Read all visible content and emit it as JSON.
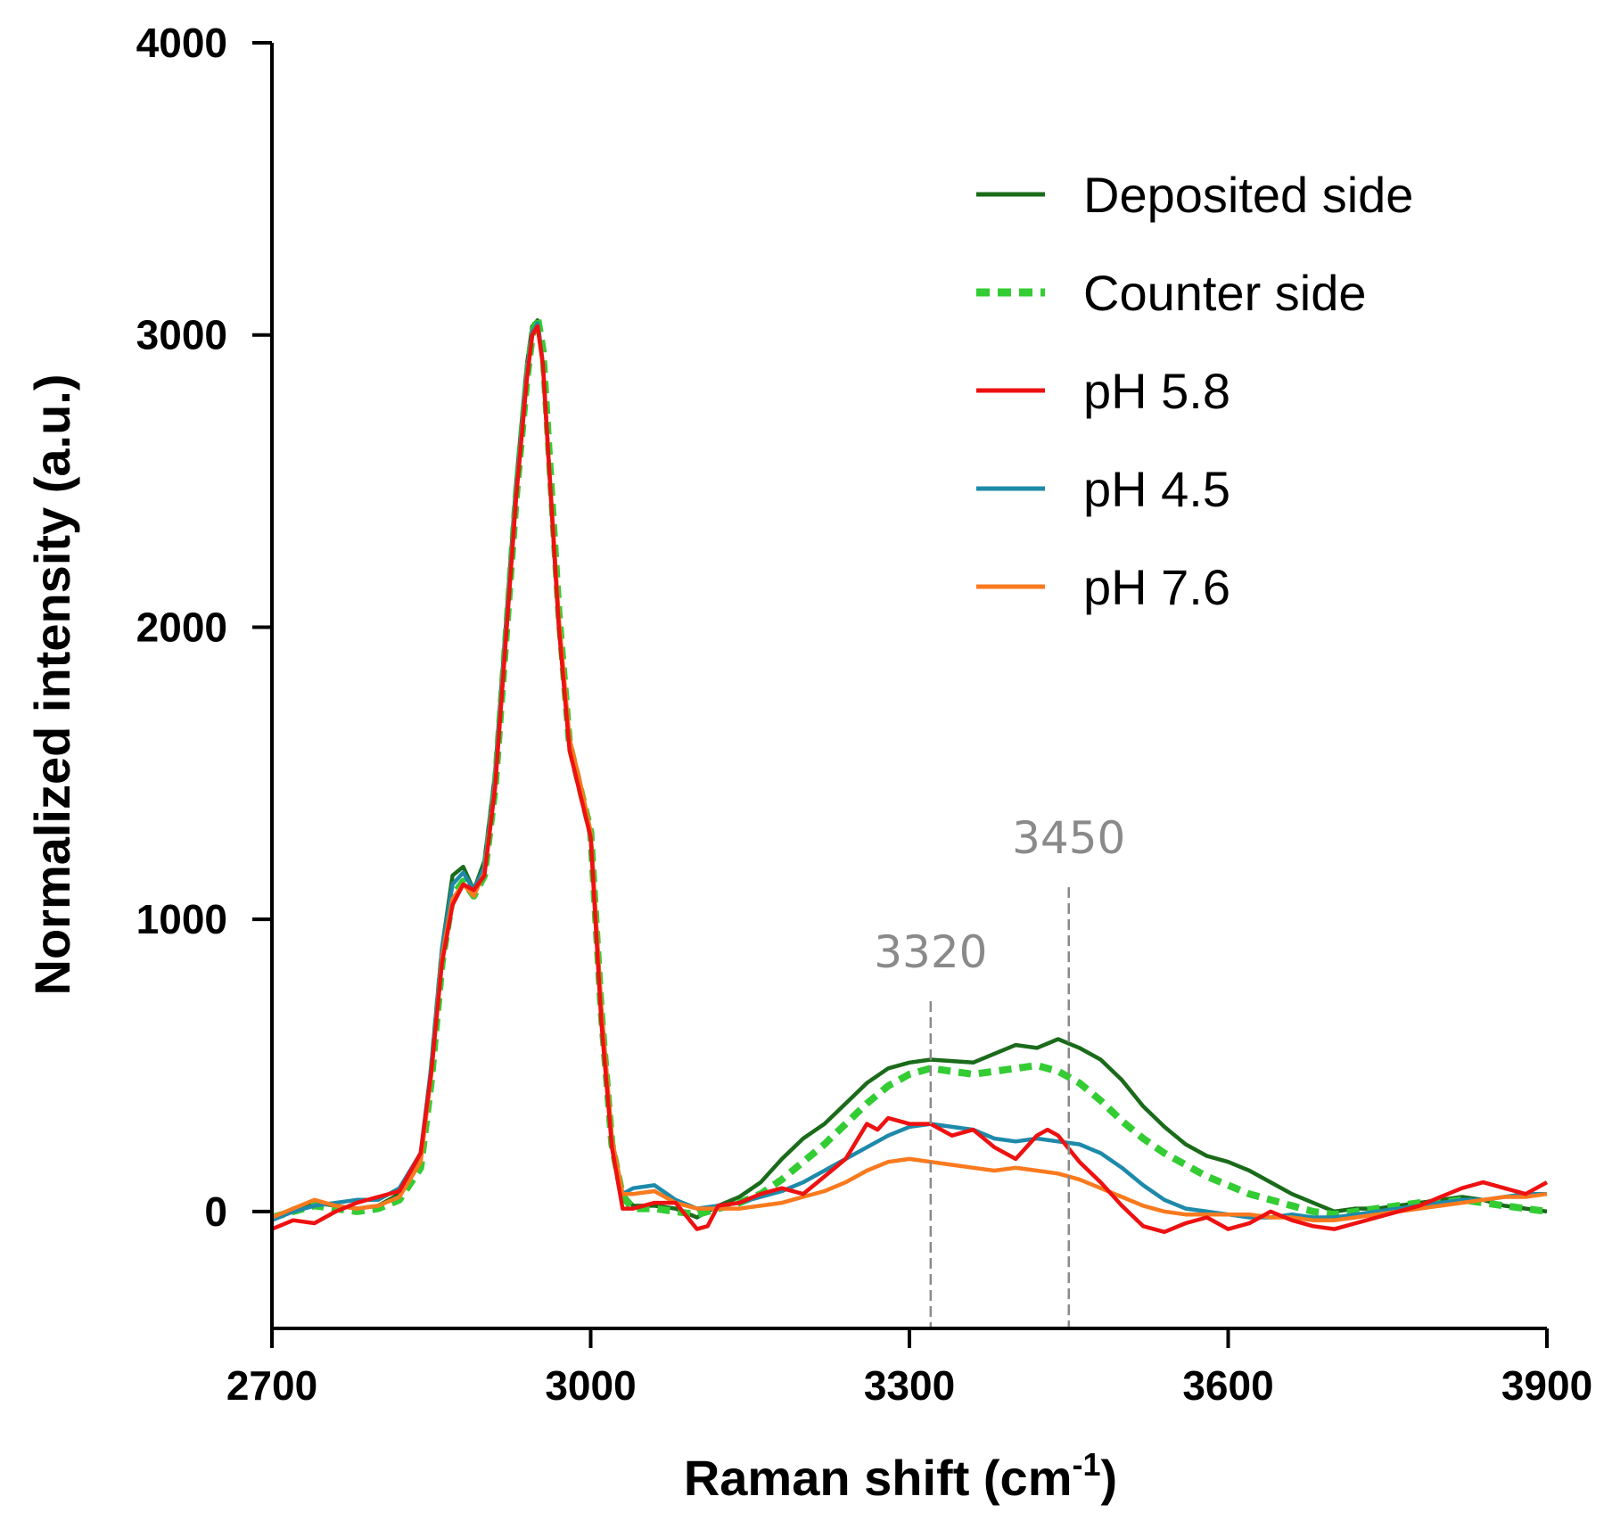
{
  "chart_data": {
    "type": "line",
    "title": "",
    "xlabel": "Raman shift (cm",
    "xlabel_sup": "-1",
    "xlabel_close": ")",
    "ylabel": "Normalized intensity (a.u.)",
    "xlim": [
      2700,
      3900
    ],
    "ylim": [
      -400,
      4000
    ],
    "xticks": [
      2700,
      3000,
      3300,
      3600,
      3900
    ],
    "yticks": [
      0,
      1000,
      2000,
      3000,
      4000
    ],
    "grid": false,
    "legend_position": "top-right",
    "annotations": [
      {
        "x": 3320,
        "label": "3320",
        "line_top": 720
      },
      {
        "x": 3450,
        "label": "3450",
        "line_top": 1110
      }
    ],
    "series": [
      {
        "name": "Deposited side",
        "color": "#1a6b1a",
        "dash": "solid",
        "x": [
          2700,
          2720,
          2740,
          2760,
          2780,
          2800,
          2820,
          2840,
          2850,
          2860,
          2870,
          2880,
          2890,
          2900,
          2910,
          2920,
          2930,
          2940,
          2945,
          2950,
          2955,
          2960,
          2970,
          2980,
          2990,
          3000,
          3010,
          3020,
          3030,
          3040,
          3060,
          3080,
          3100,
          3120,
          3140,
          3160,
          3180,
          3200,
          3220,
          3240,
          3260,
          3280,
          3300,
          3320,
          3340,
          3360,
          3380,
          3400,
          3420,
          3440,
          3460,
          3480,
          3500,
          3520,
          3540,
          3560,
          3580,
          3600,
          3620,
          3640,
          3660,
          3680,
          3700,
          3720,
          3740,
          3760,
          3780,
          3800,
          3820,
          3840,
          3860,
          3880,
          3900
        ],
        "values": [
          -30,
          10,
          30,
          20,
          10,
          20,
          60,
          180,
          500,
          900,
          1150,
          1180,
          1100,
          1200,
          1500,
          2000,
          2500,
          2900,
          3030,
          3050,
          2900,
          2600,
          2000,
          1600,
          1450,
          1300,
          700,
          250,
          60,
          20,
          20,
          10,
          -20,
          20,
          50,
          100,
          180,
          250,
          300,
          370,
          440,
          490,
          510,
          520,
          515,
          510,
          540,
          570,
          560,
          590,
          560,
          520,
          450,
          360,
          290,
          230,
          190,
          170,
          140,
          100,
          60,
          30,
          0,
          10,
          10,
          20,
          30,
          40,
          50,
          40,
          20,
          10,
          0
        ]
      },
      {
        "name": "Counter side",
        "color": "#33cc33",
        "dash": "dashed",
        "x": [
          2700,
          2720,
          2740,
          2760,
          2780,
          2800,
          2820,
          2840,
          2850,
          2860,
          2870,
          2880,
          2890,
          2900,
          2910,
          2920,
          2930,
          2940,
          2945,
          2950,
          2955,
          2960,
          2970,
          2980,
          2990,
          3000,
          3010,
          3020,
          3030,
          3040,
          3060,
          3080,
          3100,
          3120,
          3140,
          3160,
          3180,
          3200,
          3220,
          3240,
          3260,
          3280,
          3300,
          3320,
          3340,
          3360,
          3380,
          3400,
          3420,
          3440,
          3460,
          3480,
          3500,
          3520,
          3540,
          3560,
          3580,
          3600,
          3620,
          3640,
          3660,
          3680,
          3700,
          3720,
          3740,
          3760,
          3780,
          3800,
          3820,
          3840,
          3860,
          3880,
          3900
        ],
        "values": [
          -20,
          0,
          20,
          10,
          0,
          10,
          40,
          150,
          450,
          850,
          1080,
          1130,
          1080,
          1150,
          1450,
          1950,
          2450,
          2850,
          3000,
          3060,
          2950,
          2650,
          2050,
          1600,
          1450,
          1300,
          680,
          230,
          50,
          10,
          10,
          0,
          -10,
          10,
          30,
          60,
          110,
          170,
          230,
          300,
          370,
          430,
          470,
          490,
          480,
          470,
          480,
          490,
          500,
          480,
          440,
          380,
          310,
          250,
          200,
          160,
          120,
          90,
          60,
          40,
          20,
          0,
          -10,
          0,
          10,
          20,
          30,
          30,
          40,
          30,
          20,
          10,
          0
        ]
      },
      {
        "name": "pH 5.8",
        "color": "#ee1111",
        "dash": "solid",
        "x": [
          2700,
          2720,
          2740,
          2760,
          2780,
          2800,
          2820,
          2840,
          2850,
          2860,
          2870,
          2880,
          2890,
          2900,
          2910,
          2920,
          2930,
          2940,
          2945,
          2950,
          2955,
          2960,
          2970,
          2980,
          2990,
          3000,
          3010,
          3020,
          3030,
          3040,
          3060,
          3080,
          3100,
          3110,
          3120,
          3140,
          3160,
          3180,
          3200,
          3220,
          3240,
          3260,
          3270,
          3280,
          3290,
          3300,
          3320,
          3340,
          3360,
          3380,
          3400,
          3420,
          3430,
          3440,
          3460,
          3480,
          3500,
          3520,
          3540,
          3560,
          3580,
          3600,
          3620,
          3640,
          3660,
          3680,
          3700,
          3720,
          3740,
          3760,
          3780,
          3800,
          3820,
          3840,
          3860,
          3880,
          3900
        ],
        "values": [
          -60,
          -30,
          -40,
          0,
          30,
          50,
          70,
          200,
          480,
          850,
          1050,
          1120,
          1100,
          1150,
          1450,
          1950,
          2450,
          2850,
          3000,
          3030,
          2900,
          2600,
          2000,
          1580,
          1430,
          1280,
          650,
          220,
          10,
          10,
          30,
          30,
          -60,
          -50,
          20,
          30,
          60,
          80,
          60,
          120,
          180,
          300,
          280,
          320,
          310,
          300,
          300,
          260,
          280,
          220,
          180,
          260,
          280,
          260,
          170,
          100,
          20,
          -50,
          -70,
          -40,
          -20,
          -60,
          -40,
          0,
          -30,
          -50,
          -60,
          -40,
          -20,
          0,
          20,
          50,
          80,
          100,
          80,
          60,
          100
        ]
      },
      {
        "name": "pH 4.5",
        "color": "#1e8aaa",
        "dash": "solid",
        "x": [
          2700,
          2720,
          2740,
          2760,
          2780,
          2800,
          2820,
          2840,
          2850,
          2860,
          2870,
          2880,
          2890,
          2900,
          2910,
          2920,
          2930,
          2940,
          2945,
          2950,
          2955,
          2960,
          2970,
          2980,
          2990,
          3000,
          3010,
          3020,
          3030,
          3040,
          3060,
          3080,
          3100,
          3120,
          3140,
          3160,
          3180,
          3200,
          3220,
          3240,
          3260,
          3280,
          3300,
          3320,
          3340,
          3360,
          3380,
          3400,
          3420,
          3440,
          3460,
          3480,
          3500,
          3520,
          3540,
          3560,
          3580,
          3600,
          3620,
          3640,
          3660,
          3680,
          3700,
          3720,
          3740,
          3760,
          3780,
          3800,
          3820,
          3840,
          3860,
          3880,
          3900
        ],
        "values": [
          -30,
          0,
          20,
          30,
          40,
          40,
          80,
          200,
          500,
          900,
          1120,
          1160,
          1100,
          1180,
          1480,
          1980,
          2480,
          2880,
          3010,
          3040,
          2900,
          2600,
          2020,
          1590,
          1440,
          1290,
          670,
          240,
          60,
          80,
          90,
          40,
          10,
          20,
          30,
          50,
          70,
          100,
          140,
          180,
          220,
          260,
          290,
          300,
          290,
          280,
          250,
          240,
          250,
          240,
          230,
          200,
          150,
          90,
          40,
          10,
          0,
          -10,
          -20,
          -20,
          -10,
          -20,
          -20,
          -10,
          0,
          10,
          20,
          30,
          40,
          40,
          50,
          60,
          60
        ]
      },
      {
        "name": "pH 7.6",
        "color": "#f97a1e",
        "dash": "solid",
        "x": [
          2700,
          2720,
          2740,
          2760,
          2780,
          2800,
          2820,
          2840,
          2850,
          2860,
          2870,
          2880,
          2890,
          2900,
          2910,
          2920,
          2930,
          2940,
          2945,
          2950,
          2955,
          2960,
          2970,
          2980,
          2990,
          3000,
          3010,
          3020,
          3030,
          3040,
          3060,
          3080,
          3100,
          3120,
          3140,
          3160,
          3180,
          3200,
          3220,
          3240,
          3260,
          3280,
          3300,
          3320,
          3340,
          3360,
          3380,
          3400,
          3420,
          3440,
          3460,
          3480,
          3500,
          3520,
          3540,
          3560,
          3580,
          3600,
          3620,
          3640,
          3660,
          3680,
          3700,
          3720,
          3740,
          3760,
          3780,
          3800,
          3820,
          3840,
          3860,
          3880,
          3900
        ],
        "values": [
          -20,
          10,
          40,
          20,
          10,
          20,
          50,
          170,
          470,
          870,
          1070,
          1120,
          1080,
          1160,
          1460,
          1960,
          2460,
          2860,
          3000,
          3030,
          2900,
          2600,
          2030,
          1620,
          1470,
          1300,
          690,
          250,
          60,
          60,
          70,
          30,
          10,
          10,
          10,
          20,
          30,
          50,
          70,
          100,
          140,
          170,
          180,
          170,
          160,
          150,
          140,
          150,
          140,
          130,
          110,
          80,
          50,
          20,
          0,
          -10,
          -10,
          -10,
          -10,
          -20,
          -20,
          -30,
          -30,
          -20,
          -10,
          0,
          10,
          20,
          30,
          40,
          50,
          50,
          60
        ]
      }
    ]
  }
}
